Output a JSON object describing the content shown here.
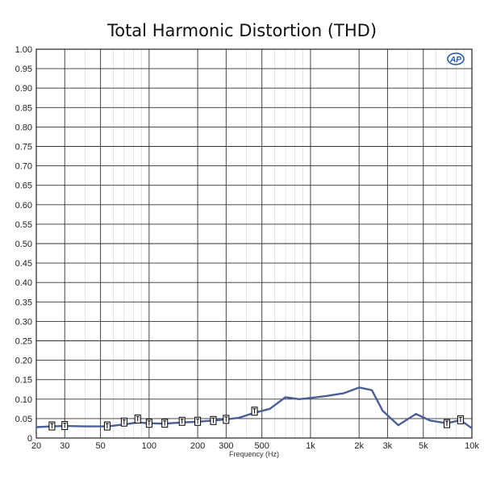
{
  "chart_data": {
    "type": "line",
    "title": "Total Harmonic Distortion (THD)",
    "xlabel": "Frequency (Hz)",
    "ylabel": "",
    "xscale": "log",
    "xlim": [
      20,
      10000
    ],
    "ylim": [
      0,
      1.0
    ],
    "grid": true,
    "legend": "none",
    "line_color": "#4a5f97",
    "marker_color": "#000000",
    "x_ticks": [
      {
        "value": 20,
        "label": "20"
      },
      {
        "value": 30,
        "label": "30"
      },
      {
        "value": 50,
        "label": "50"
      },
      {
        "value": 100,
        "label": "100"
      },
      {
        "value": 200,
        "label": "200"
      },
      {
        "value": 300,
        "label": "300"
      },
      {
        "value": 500,
        "label": "500"
      },
      {
        "value": 1000,
        "label": "1k"
      },
      {
        "value": 2000,
        "label": "2k"
      },
      {
        "value": 3000,
        "label": "3k"
      },
      {
        "value": 5000,
        "label": "5k"
      },
      {
        "value": 10000,
        "label": "10k"
      }
    ],
    "y_ticks": [
      {
        "value": 0.0,
        "label": "0"
      },
      {
        "value": 0.05,
        "label": "0.05"
      },
      {
        "value": 0.1,
        "label": "0.10"
      },
      {
        "value": 0.15,
        "label": "0.15"
      },
      {
        "value": 0.2,
        "label": "0.20"
      },
      {
        "value": 0.25,
        "label": "0.25"
      },
      {
        "value": 0.3,
        "label": "0.30"
      },
      {
        "value": 0.35,
        "label": "0.35"
      },
      {
        "value": 0.4,
        "label": "0.40"
      },
      {
        "value": 0.45,
        "label": "0.45"
      },
      {
        "value": 0.5,
        "label": "0.50"
      },
      {
        "value": 0.55,
        "label": "0.55"
      },
      {
        "value": 0.6,
        "label": "0.60"
      },
      {
        "value": 0.65,
        "label": "0.65"
      },
      {
        "value": 0.7,
        "label": "0.70"
      },
      {
        "value": 0.75,
        "label": "0.75"
      },
      {
        "value": 0.8,
        "label": "0.80"
      },
      {
        "value": 0.85,
        "label": "0.85"
      },
      {
        "value": 0.9,
        "label": "0.90"
      },
      {
        "value": 0.95,
        "label": "0.95"
      },
      {
        "value": 1.0,
        "label": "1.00"
      }
    ],
    "series": [
      {
        "x": [
          20,
          25,
          30,
          40,
          55,
          70,
          85,
          100,
          125,
          160,
          200,
          250,
          300,
          360,
          450,
          560,
          700,
          850,
          1000,
          1250,
          1600,
          2000,
          2400,
          2800,
          3500,
          4500,
          5500,
          7000,
          8500,
          10000
        ],
        "values": [
          0.028,
          0.03,
          0.031,
          0.03,
          0.03,
          0.035,
          0.04,
          0.038,
          0.037,
          0.04,
          0.042,
          0.045,
          0.048,
          0.052,
          0.065,
          0.075,
          0.105,
          0.1,
          0.103,
          0.108,
          0.115,
          0.13,
          0.123,
          0.07,
          0.033,
          0.062,
          0.045,
          0.038,
          0.046,
          0.025
        ]
      }
    ],
    "markers": {
      "x": [
        25,
        30,
        55,
        70,
        85,
        100,
        125,
        160,
        200,
        250,
        300,
        450,
        7000,
        8500
      ],
      "values": [
        0.031,
        0.032,
        0.031,
        0.041,
        0.049,
        0.038,
        0.038,
        0.043,
        0.043,
        0.045,
        0.048,
        0.069,
        0.037,
        0.047
      ],
      "symbol": "T"
    }
  },
  "logo": {
    "text": "AP"
  }
}
